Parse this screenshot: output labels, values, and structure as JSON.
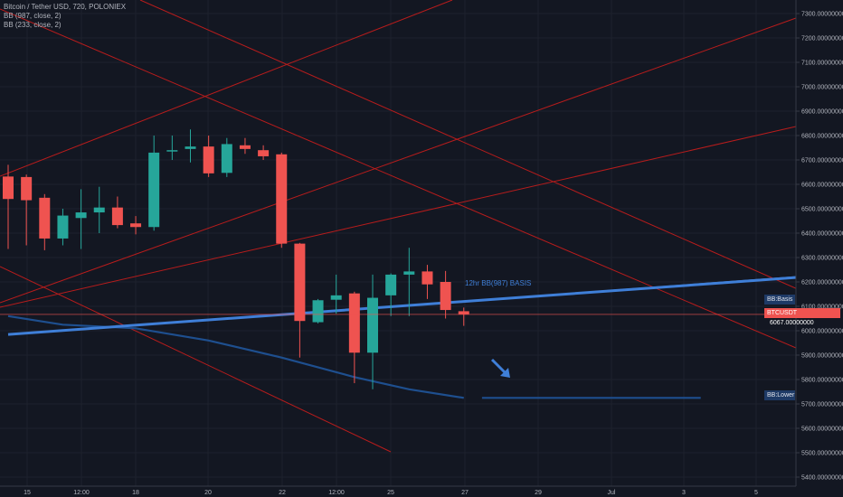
{
  "legend": {
    "symbol_line": "Bitcoin / Tether USD, 720, POLONIEX",
    "bb1": "BB (987, close, 2)",
    "bb2": "BB (233, close, 2)"
  },
  "price_axis": {
    "labels": [
      "7300.00000000",
      "7200.00000000",
      "7100.00000000",
      "7000.00000000",
      "6900.00000000",
      "6800.00000000",
      "6700.00000000",
      "6600.00000000",
      "6500.00000000",
      "6400.00000000",
      "6300.00000000",
      "6200.00000000",
      "6100.00000000",
      "6000.00000000",
      "5900.00000000",
      "5800.00000000",
      "5700.00000000",
      "5600.00000000",
      "5500.00000000",
      "5400.00000000"
    ]
  },
  "time_axis": {
    "labels": [
      "15",
      "12:00",
      "18",
      "20",
      "22",
      "12:00",
      "25",
      "27",
      "29",
      "Jul",
      "3",
      "5"
    ]
  },
  "annotation": {
    "basis_label": "12hr BB(987) BASIS"
  },
  "tags": {
    "basis": "BB:Basis",
    "price": "BTCUSDT",
    "price_value": "6067.00000000",
    "lower": "BB:Lower"
  },
  "colors": {
    "background": "#131722",
    "up": "#26a69a",
    "down": "#ef5350",
    "trendline": "#b71c1c",
    "basis": "#3f7fd8",
    "lower": "#1e4f8f"
  },
  "chart_data": {
    "type": "candlestick",
    "series": [
      {
        "o": 6632,
        "h": 6680,
        "l": 6335,
        "c": 6540
      },
      {
        "o": 6630,
        "h": 6640,
        "l": 6350,
        "c": 6535
      },
      {
        "o": 6545,
        "h": 6560,
        "l": 6330,
        "c": 6378
      },
      {
        "o": 6378,
        "h": 6500,
        "l": 6350,
        "c": 6472
      },
      {
        "o": 6462,
        "h": 6580,
        "l": 6335,
        "c": 6485
      },
      {
        "o": 6485,
        "h": 6590,
        "l": 6400,
        "c": 6505
      },
      {
        "o": 6505,
        "h": 6550,
        "l": 6420,
        "c": 6433
      },
      {
        "o": 6440,
        "h": 6470,
        "l": 6395,
        "c": 6425
      },
      {
        "o": 6425,
        "h": 6800,
        "l": 6410,
        "c": 6730
      },
      {
        "o": 6735,
        "h": 6800,
        "l": 6700,
        "c": 6740
      },
      {
        "o": 6745,
        "h": 6825,
        "l": 6690,
        "c": 6755
      },
      {
        "o": 6755,
        "h": 6800,
        "l": 6630,
        "c": 6645
      },
      {
        "o": 6647,
        "h": 6790,
        "l": 6630,
        "c": 6765
      },
      {
        "o": 6760,
        "h": 6790,
        "l": 6725,
        "c": 6745
      },
      {
        "o": 6740,
        "h": 6760,
        "l": 6700,
        "c": 6715
      },
      {
        "o": 6723,
        "h": 6730,
        "l": 6340,
        "c": 6357
      },
      {
        "o": 6357,
        "h": 6360,
        "l": 5890,
        "c": 6040
      },
      {
        "o": 6035,
        "h": 6130,
        "l": 6030,
        "c": 6125
      },
      {
        "o": 6127,
        "h": 6230,
        "l": 6070,
        "c": 6145
      },
      {
        "o": 6153,
        "h": 6160,
        "l": 5785,
        "c": 5910
      },
      {
        "o": 5910,
        "h": 6230,
        "l": 5760,
        "c": 6135
      },
      {
        "o": 6145,
        "h": 6235,
        "l": 6060,
        "c": 6230
      },
      {
        "o": 6230,
        "h": 6340,
        "l": 6060,
        "c": 6243
      },
      {
        "o": 6243,
        "h": 6270,
        "l": 6130,
        "c": 6190
      },
      {
        "o": 6200,
        "h": 6245,
        "l": 6050,
        "c": 6085
      },
      {
        "o": 6080,
        "h": 6095,
        "l": 6020,
        "c": 6067
      }
    ],
    "ylim": [
      5360,
      7340
    ],
    "basis_line": [
      [
        0,
        5985
      ],
      [
        25,
        6120
      ],
      [
        44.5,
        6225
      ]
    ],
    "lower_band": [
      [
        0,
        6060
      ],
      [
        3,
        6025
      ],
      [
        7,
        6010
      ],
      [
        11,
        5960
      ],
      [
        15,
        5890
      ],
      [
        19,
        5810
      ],
      [
        22,
        5760
      ],
      [
        25,
        5725
      ]
    ],
    "lower_band_projection": [
      [
        26,
        5725
      ],
      [
        38,
        5725
      ]
    ]
  }
}
